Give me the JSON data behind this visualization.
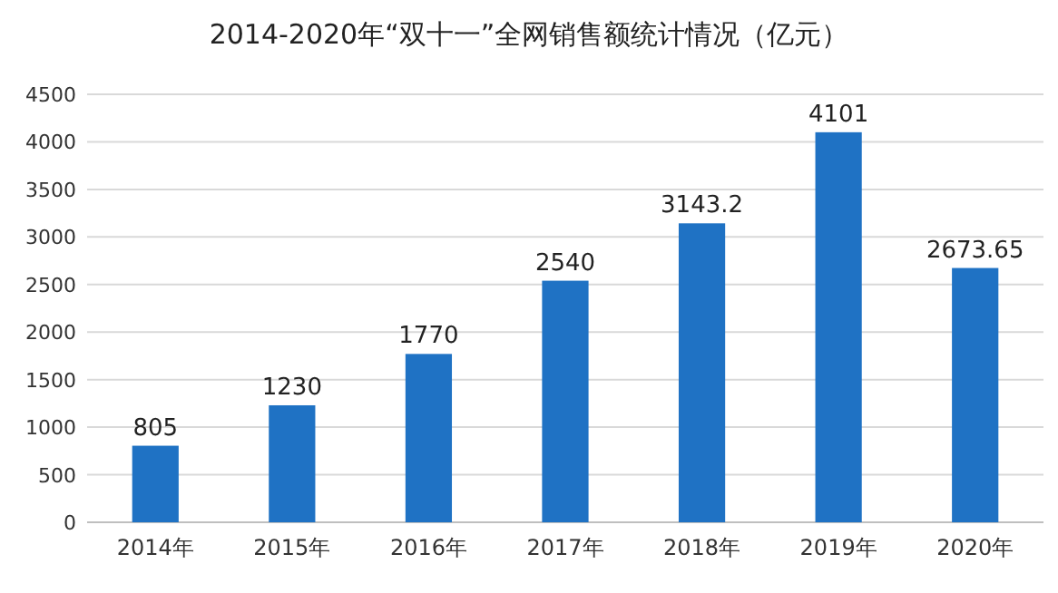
{
  "chart_data": {
    "type": "bar",
    "title": "2014-2020年“双十一”全网销售额统计情况（亿元）",
    "categories": [
      "2014年",
      "2015年",
      "2016年",
      "2017年",
      "2018年",
      "2019年",
      "2020年"
    ],
    "values": [
      805,
      1230,
      1770,
      2540,
      3143.2,
      4101,
      2673.65
    ],
    "color": "#1f72c4",
    "ylim": [
      0,
      4500
    ],
    "yticks": [
      0,
      500,
      1000,
      1500,
      2000,
      2500,
      3000,
      3500,
      4000,
      4500
    ],
    "grid": "y",
    "data_labels": true
  }
}
